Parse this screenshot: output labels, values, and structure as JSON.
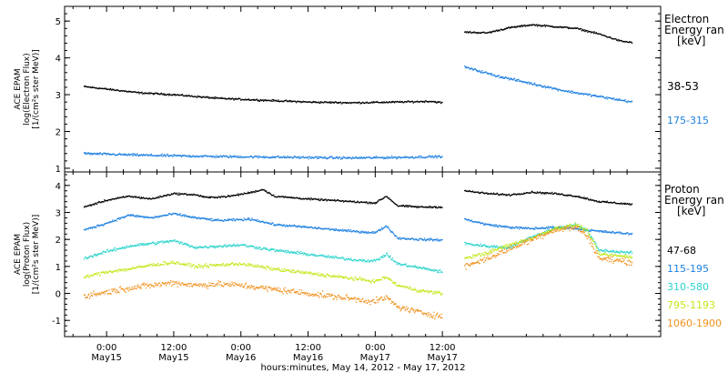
{
  "chart_data": [
    {
      "type": "scatter",
      "panel": "electron",
      "ylabel": [
        "ACE EPAM",
        "log(Electron Flux)",
        "[1/(cm²s ster MeV)]"
      ],
      "ylim": [
        0.9,
        5.4
      ],
      "yticks": [
        1,
        2,
        3,
        4,
        5
      ],
      "legend": {
        "title": [
          "Electron",
          "Energy ran",
          "[keV]"
        ],
        "placement": "right",
        "entries": [
          {
            "label": "38-53",
            "color": "#000000"
          },
          {
            "label": "175-315",
            "color": "#1c7fe0"
          }
        ]
      },
      "series": [
        {
          "name": "38-53",
          "color": "#000000",
          "noise": 0.025,
          "points": [
            [
              -4,
              3.22
            ],
            [
              6,
              3.05
            ],
            [
              12,
              3.0
            ],
            [
              20,
              2.9
            ],
            [
              28,
              2.85
            ],
            [
              36,
              2.8
            ],
            [
              44,
              2.78
            ],
            [
              52,
              2.8
            ],
            [
              58,
              2.82
            ],
            [
              60,
              2.78
            ],
            [
              null,
              null
            ],
            [
              64,
              4.7
            ],
            [
              68,
              4.68
            ],
            [
              72,
              4.82
            ],
            [
              76,
              4.9
            ],
            [
              80,
              4.85
            ],
            [
              84,
              4.8
            ],
            [
              88,
              4.65
            ],
            [
              92,
              4.45
            ],
            [
              94,
              4.42
            ]
          ]
        },
        {
          "name": "175-315",
          "color": "#1c7fe0",
          "noise": 0.035,
          "points": [
            [
              -4,
              1.4
            ],
            [
              8,
              1.35
            ],
            [
              20,
              1.32
            ],
            [
              32,
              1.3
            ],
            [
              44,
              1.28
            ],
            [
              54,
              1.3
            ],
            [
              60,
              1.32
            ],
            [
              null,
              null
            ],
            [
              64,
              3.75
            ],
            [
              70,
              3.5
            ],
            [
              76,
              3.3
            ],
            [
              82,
              3.1
            ],
            [
              88,
              2.95
            ],
            [
              94,
              2.8
            ]
          ]
        }
      ]
    },
    {
      "type": "scatter",
      "panel": "proton",
      "ylabel": [
        "ACE EPAM",
        "log(Proton Flux)",
        "[1/(cm²s ster MeV)]"
      ],
      "ylim": [
        -1.6,
        4.5
      ],
      "yticks": [
        -1,
        0,
        1,
        2,
        3,
        4
      ],
      "legend": {
        "title": [
          "Proton",
          "Energy ran",
          "[keV]"
        ],
        "placement": "right",
        "entries": [
          {
            "label": "47-68",
            "color": "#000000"
          },
          {
            "label": "115-195",
            "color": "#1c7fe0"
          },
          {
            "label": "310-580",
            "color": "#2ad3cc"
          },
          {
            "label": "795-1193",
            "color": "#c2e81c"
          },
          {
            "label": "1060-1900",
            "color": "#f0901c"
          }
        ]
      },
      "series": [
        {
          "name": "47-68",
          "color": "#000000",
          "noise": 0.035,
          "points": [
            [
              -4,
              3.2
            ],
            [
              0,
              3.45
            ],
            [
              4,
              3.6
            ],
            [
              8,
              3.5
            ],
            [
              12,
              3.7
            ],
            [
              16,
              3.65
            ],
            [
              18,
              3.55
            ],
            [
              22,
              3.6
            ],
            [
              26,
              3.75
            ],
            [
              28,
              3.85
            ],
            [
              30,
              3.6
            ],
            [
              36,
              3.5
            ],
            [
              44,
              3.4
            ],
            [
              48,
              3.35
            ],
            [
              50,
              3.6
            ],
            [
              52,
              3.25
            ],
            [
              56,
              3.2
            ],
            [
              60,
              3.2
            ],
            [
              null,
              null
            ],
            [
              64,
              3.8
            ],
            [
              68,
              3.7
            ],
            [
              72,
              3.65
            ],
            [
              76,
              3.75
            ],
            [
              80,
              3.7
            ],
            [
              84,
              3.6
            ],
            [
              88,
              3.4
            ],
            [
              94,
              3.3
            ]
          ]
        },
        {
          "name": "115-195",
          "color": "#1c7fe0",
          "noise": 0.045,
          "points": [
            [
              -4,
              2.35
            ],
            [
              0,
              2.6
            ],
            [
              4,
              2.9
            ],
            [
              8,
              2.8
            ],
            [
              12,
              2.95
            ],
            [
              16,
              2.8
            ],
            [
              20,
              2.7
            ],
            [
              26,
              2.75
            ],
            [
              30,
              2.55
            ],
            [
              36,
              2.45
            ],
            [
              44,
              2.3
            ],
            [
              48,
              2.25
            ],
            [
              50,
              2.5
            ],
            [
              52,
              2.05
            ],
            [
              56,
              2.0
            ],
            [
              60,
              1.98
            ],
            [
              null,
              null
            ],
            [
              64,
              2.75
            ],
            [
              68,
              2.55
            ],
            [
              72,
              2.45
            ],
            [
              76,
              2.4
            ],
            [
              80,
              2.45
            ],
            [
              84,
              2.4
            ],
            [
              88,
              2.3
            ],
            [
              94,
              2.2
            ]
          ]
        },
        {
          "name": "310-580",
          "color": "#2ad3cc",
          "noise": 0.06,
          "points": [
            [
              -4,
              1.3
            ],
            [
              0,
              1.55
            ],
            [
              4,
              1.75
            ],
            [
              8,
              1.85
            ],
            [
              12,
              1.95
            ],
            [
              16,
              1.7
            ],
            [
              20,
              1.75
            ],
            [
              24,
              1.8
            ],
            [
              30,
              1.6
            ],
            [
              36,
              1.45
            ],
            [
              44,
              1.25
            ],
            [
              48,
              1.2
            ],
            [
              50,
              1.45
            ],
            [
              52,
              1.1
            ],
            [
              56,
              0.95
            ],
            [
              60,
              0.8
            ],
            [
              null,
              null
            ],
            [
              64,
              1.85
            ],
            [
              68,
              1.75
            ],
            [
              72,
              1.7
            ],
            [
              76,
              2.1
            ],
            [
              80,
              2.4
            ],
            [
              84,
              2.55
            ],
            [
              86,
              2.3
            ],
            [
              88,
              1.6
            ],
            [
              94,
              1.5
            ]
          ]
        },
        {
          "name": "795-1193",
          "color": "#c2e81c",
          "noise": 0.07,
          "points": [
            [
              -4,
              0.6
            ],
            [
              0,
              0.8
            ],
            [
              4,
              0.9
            ],
            [
              8,
              1.05
            ],
            [
              12,
              1.15
            ],
            [
              16,
              1.0
            ],
            [
              20,
              1.05
            ],
            [
              24,
              1.1
            ],
            [
              30,
              0.9
            ],
            [
              36,
              0.75
            ],
            [
              44,
              0.55
            ],
            [
              48,
              0.45
            ],
            [
              50,
              0.6
            ],
            [
              52,
              0.3
            ],
            [
              56,
              0.1
            ],
            [
              60,
              0.0
            ],
            [
              null,
              null
            ],
            [
              64,
              1.3
            ],
            [
              68,
              1.5
            ],
            [
              72,
              1.8
            ],
            [
              76,
              2.05
            ],
            [
              80,
              2.4
            ],
            [
              84,
              2.55
            ],
            [
              86,
              2.3
            ],
            [
              88,
              1.45
            ],
            [
              94,
              1.35
            ]
          ]
        },
        {
          "name": "1060-1900",
          "color": "#f0901c",
          "noise": 0.12,
          "points": [
            [
              -4,
              -0.1
            ],
            [
              0,
              0.05
            ],
            [
              4,
              0.2
            ],
            [
              8,
              0.3
            ],
            [
              12,
              0.4
            ],
            [
              16,
              0.3
            ],
            [
              20,
              0.35
            ],
            [
              24,
              0.3
            ],
            [
              30,
              0.15
            ],
            [
              36,
              0.0
            ],
            [
              44,
              -0.2
            ],
            [
              48,
              -0.3
            ],
            [
              50,
              -0.15
            ],
            [
              52,
              -0.5
            ],
            [
              56,
              -0.7
            ],
            [
              60,
              -0.85
            ],
            [
              null,
              null
            ],
            [
              64,
              1.0
            ],
            [
              68,
              1.3
            ],
            [
              72,
              1.65
            ],
            [
              76,
              2.0
            ],
            [
              80,
              2.35
            ],
            [
              84,
              2.45
            ],
            [
              86,
              2.1
            ],
            [
              88,
              1.3
            ],
            [
              94,
              1.15
            ]
          ]
        }
      ]
    }
  ],
  "x_axis": {
    "xlim": [
      -7.5,
      99
    ],
    "ticks": [
      {
        "x": 0,
        "time": "0:00",
        "date": "May15"
      },
      {
        "x": 12,
        "time": "12:00",
        "date": "May15"
      },
      {
        "x": 24,
        "time": "0:00",
        "date": "May16"
      },
      {
        "x": 36,
        "time": "12:00",
        "date": "May16"
      },
      {
        "x": 48,
        "time": "0:00",
        "date": "May17"
      },
      {
        "x": 60,
        "time": "12:00",
        "date": "May17"
      }
    ],
    "label": "hours:minutes, May 14, 2012 - May 17, 2012"
  }
}
